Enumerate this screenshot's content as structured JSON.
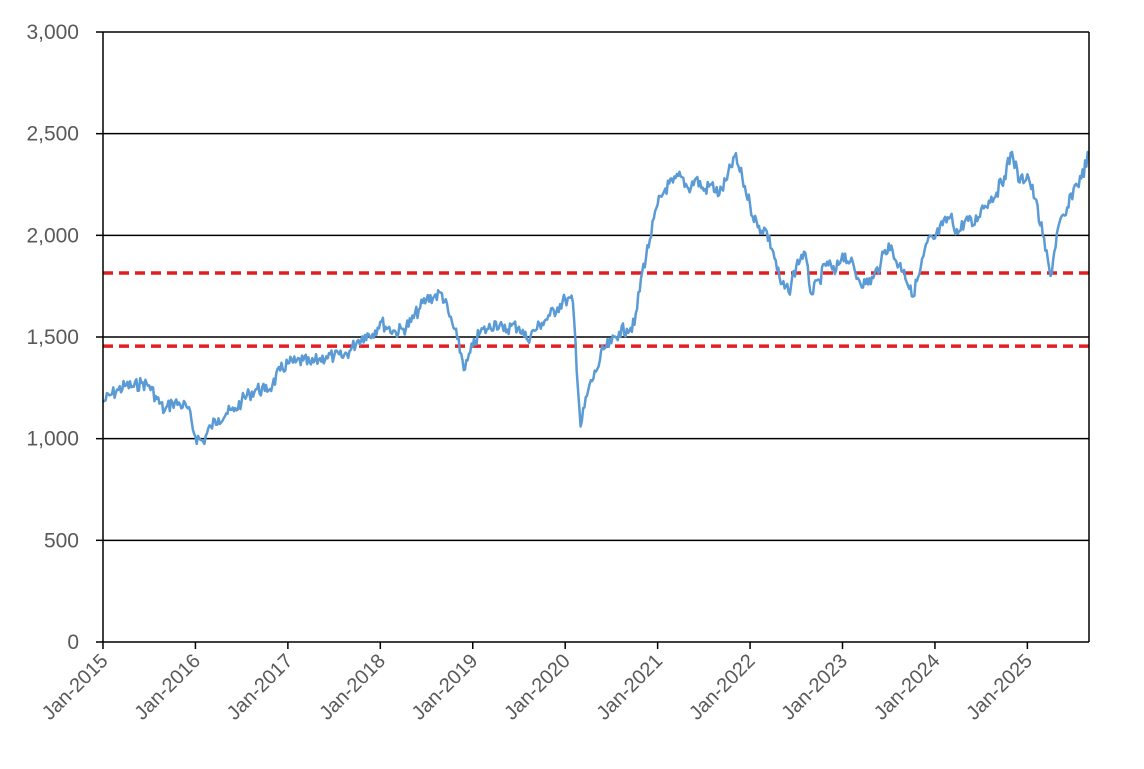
{
  "chart_data": {
    "type": "line",
    "title": "",
    "xlabel": "",
    "ylabel": "",
    "ylim": [
      0,
      3000
    ],
    "xlim": [
      "2015-01",
      "2025-09"
    ],
    "grid": "horizontal",
    "y_ticks": [
      {
        "value": 0,
        "label": "0"
      },
      {
        "value": 500,
        "label": "500"
      },
      {
        "value": 1000,
        "label": "1,000"
      },
      {
        "value": 1500,
        "label": "1,500"
      },
      {
        "value": 2000,
        "label": "2,000"
      },
      {
        "value": 2500,
        "label": "2,500"
      },
      {
        "value": 3000,
        "label": "3,000"
      }
    ],
    "x_ticks": [
      {
        "value": "2015-01",
        "label": "Jan-2015"
      },
      {
        "value": "2016-01",
        "label": "Jan-2016"
      },
      {
        "value": "2017-01",
        "label": "Jan-2017"
      },
      {
        "value": "2018-01",
        "label": "Jan-2018"
      },
      {
        "value": "2019-01",
        "label": "Jan-2019"
      },
      {
        "value": "2020-01",
        "label": "Jan-2020"
      },
      {
        "value": "2021-01",
        "label": "Jan-2021"
      },
      {
        "value": "2022-01",
        "label": "Jan-2022"
      },
      {
        "value": "2023-01",
        "label": "Jan-2023"
      },
      {
        "value": "2024-01",
        "label": "Jan-2024"
      },
      {
        "value": "2025-01",
        "label": "Jan-2025"
      }
    ],
    "series": [
      {
        "color": "#5b9bd5",
        "points": [
          [
            "2015-01",
            1180
          ],
          [
            "2015-02",
            1215
          ],
          [
            "2015-03",
            1240
          ],
          [
            "2015-04",
            1262
          ],
          [
            "2015-05",
            1255
          ],
          [
            "2015-06",
            1275
          ],
          [
            "2015-07",
            1262
          ],
          [
            "2015-08",
            1195
          ],
          [
            "2015-09",
            1135
          ],
          [
            "2015-10",
            1180
          ],
          [
            "2015-11",
            1170
          ],
          [
            "2015-12",
            1150
          ],
          [
            "2016-01",
            1010
          ],
          [
            "2016-02",
            985
          ],
          [
            "2016-03",
            1060
          ],
          [
            "2016-04",
            1100
          ],
          [
            "2016-05",
            1125
          ],
          [
            "2016-06",
            1135
          ],
          [
            "2016-07",
            1185
          ],
          [
            "2016-08",
            1220
          ],
          [
            "2016-09",
            1245
          ],
          [
            "2016-10",
            1235
          ],
          [
            "2016-11",
            1265
          ],
          [
            "2016-12",
            1335
          ],
          [
            "2017-01",
            1370
          ],
          [
            "2017-02",
            1375
          ],
          [
            "2017-03",
            1385
          ],
          [
            "2017-04",
            1365
          ],
          [
            "2017-05",
            1390
          ],
          [
            "2017-06",
            1405
          ],
          [
            "2017-07",
            1405
          ],
          [
            "2017-08",
            1400
          ],
          [
            "2017-09",
            1430
          ],
          [
            "2017-10",
            1480
          ],
          [
            "2017-11",
            1510
          ],
          [
            "2017-12",
            1515
          ],
          [
            "2018-01",
            1575
          ],
          [
            "2018-02",
            1545
          ],
          [
            "2018-03",
            1525
          ],
          [
            "2018-04",
            1540
          ],
          [
            "2018-05",
            1575
          ],
          [
            "2018-06",
            1635
          ],
          [
            "2018-07",
            1685
          ],
          [
            "2018-08",
            1700
          ],
          [
            "2018-09",
            1715
          ],
          [
            "2018-10",
            1600
          ],
          [
            "2018-11",
            1490
          ],
          [
            "2018-12",
            1340
          ],
          [
            "2019-01",
            1455
          ],
          [
            "2019-02",
            1525
          ],
          [
            "2019-03",
            1540
          ],
          [
            "2019-04",
            1575
          ],
          [
            "2019-05",
            1530
          ],
          [
            "2019-06",
            1555
          ],
          [
            "2019-07",
            1550
          ],
          [
            "2019-08",
            1490
          ],
          [
            "2019-09",
            1530
          ],
          [
            "2019-10",
            1570
          ],
          [
            "2019-11",
            1605
          ],
          [
            "2019-12",
            1645
          ],
          [
            "2020-01",
            1685
          ],
          [
            "2020-02",
            1670
          ],
          [
            "2020-03",
            1060
          ],
          [
            "2020-04",
            1240
          ],
          [
            "2020-05",
            1330
          ],
          [
            "2020-06",
            1440
          ],
          [
            "2020-07",
            1470
          ],
          [
            "2020-08",
            1525
          ],
          [
            "2020-09",
            1540
          ],
          [
            "2020-10",
            1560
          ],
          [
            "2020-11",
            1820
          ],
          [
            "2020-12",
            1980
          ],
          [
            "2021-01",
            2150
          ],
          [
            "2021-02",
            2230
          ],
          [
            "2021-03",
            2260
          ],
          [
            "2021-04",
            2290
          ],
          [
            "2021-05",
            2230
          ],
          [
            "2021-06",
            2280
          ],
          [
            "2021-07",
            2220
          ],
          [
            "2021-08",
            2250
          ],
          [
            "2021-09",
            2200
          ],
          [
            "2021-10",
            2275
          ],
          [
            "2021-11",
            2390
          ],
          [
            "2021-12",
            2280
          ],
          [
            "2022-01",
            2150
          ],
          [
            "2022-02",
            2040
          ],
          [
            "2022-03",
            2030
          ],
          [
            "2022-04",
            1920
          ],
          [
            "2022-05",
            1760
          ],
          [
            "2022-06",
            1720
          ],
          [
            "2022-07",
            1850
          ],
          [
            "2022-08",
            1920
          ],
          [
            "2022-09",
            1710
          ],
          [
            "2022-10",
            1780
          ],
          [
            "2022-11",
            1870
          ],
          [
            "2022-12",
            1810
          ],
          [
            "2023-01",
            1910
          ],
          [
            "2023-02",
            1870
          ],
          [
            "2023-03",
            1790
          ],
          [
            "2023-04",
            1760
          ],
          [
            "2023-05",
            1790
          ],
          [
            "2023-06",
            1870
          ],
          [
            "2023-07",
            1960
          ],
          [
            "2023-08",
            1870
          ],
          [
            "2023-09",
            1830
          ],
          [
            "2023-10",
            1700
          ],
          [
            "2023-11",
            1810
          ],
          [
            "2023-12",
            1965
          ],
          [
            "2024-01",
            1985
          ],
          [
            "2024-02",
            2050
          ],
          [
            "2024-03",
            2090
          ],
          [
            "2024-04",
            2010
          ],
          [
            "2024-05",
            2080
          ],
          [
            "2024-06",
            2050
          ],
          [
            "2024-07",
            2130
          ],
          [
            "2024-08",
            2170
          ],
          [
            "2024-09",
            2210
          ],
          [
            "2024-10",
            2290
          ],
          [
            "2024-11",
            2410
          ],
          [
            "2024-12",
            2260
          ],
          [
            "2025-01",
            2300
          ],
          [
            "2025-02",
            2180
          ],
          [
            "2025-03",
            2000
          ],
          [
            "2025-04",
            1800
          ],
          [
            "2025-05",
            2040
          ],
          [
            "2025-06",
            2100
          ],
          [
            "2025-07",
            2230
          ],
          [
            "2025-08",
            2280
          ],
          [
            "2025-09",
            2400
          ]
        ]
      }
    ],
    "reference_lines": [
      {
        "value": 1815,
        "color": "#e02020",
        "style": "dashed"
      },
      {
        "value": 1455,
        "color": "#e02020",
        "style": "dashed"
      }
    ]
  }
}
